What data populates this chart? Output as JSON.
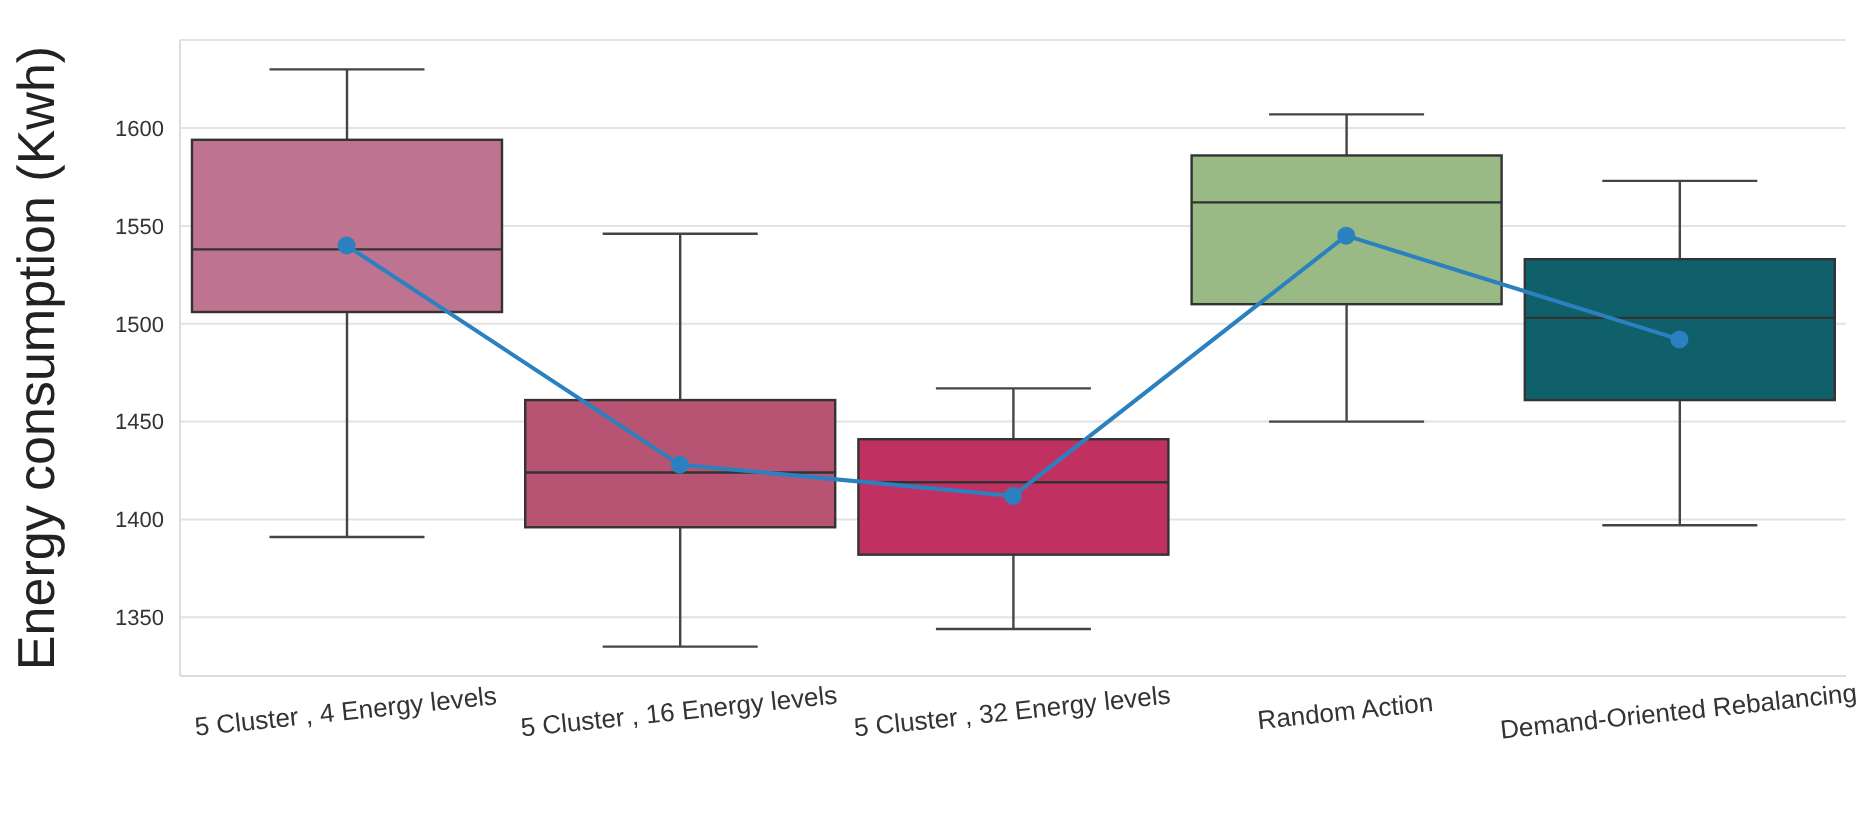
{
  "chart_data": {
    "type": "box",
    "ylabel": "Energy consumption (Kwh)",
    "categories": [
      "5 Cluster , 4 Energy levels",
      "5 Cluster , 16 Energy levels",
      "5 Cluster , 32 Energy levels",
      "Random Action",
      "Demand-Oriented Rebalancing"
    ],
    "colors": [
      "#be7490",
      "#b85473",
      "#c03162",
      "#99b985",
      "#10606b"
    ],
    "boxes": [
      {
        "low": 1391,
        "q1": 1506,
        "median": 1538,
        "q3": 1594,
        "high": 1630
      },
      {
        "low": 1335,
        "q1": 1396,
        "median": 1424,
        "q3": 1461,
        "high": 1546
      },
      {
        "low": 1344,
        "q1": 1382,
        "median": 1419,
        "q3": 1441,
        "high": 1467
      },
      {
        "low": 1450,
        "q1": 1510,
        "median": 1562,
        "q3": 1586,
        "high": 1607
      },
      {
        "low": 1397,
        "q1": 1461,
        "median": 1503,
        "q3": 1533,
        "high": 1573
      }
    ],
    "series": [
      {
        "type": "line",
        "color": "#2b80c0",
        "marker": "circle",
        "values": [
          1540,
          1428,
          1412,
          1545,
          1492
        ]
      }
    ],
    "ylim": [
      1320,
      1645
    ],
    "yticks": [
      1350,
      1400,
      1450,
      1500,
      1550,
      1600
    ],
    "grid": "y"
  }
}
